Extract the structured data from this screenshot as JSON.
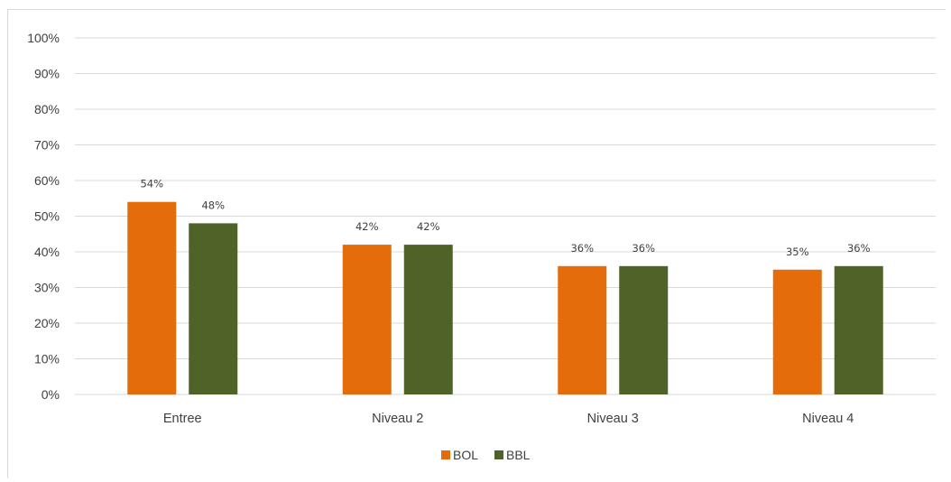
{
  "chart_data": {
    "type": "bar",
    "title": "",
    "xlabel": "",
    "ylabel": "",
    "categories": [
      "Entree",
      "Niveau 2",
      "Niveau 3",
      "Niveau 4"
    ],
    "series": [
      {
        "name": "BOL",
        "color": "#e46c0a",
        "values": [
          54,
          42,
          36,
          35
        ],
        "labels": [
          "54%",
          "42%",
          "36%",
          "35%"
        ]
      },
      {
        "name": "BBL",
        "color": "#4f6228",
        "values": [
          48,
          42,
          36,
          36
        ],
        "labels": [
          "48%",
          "42%",
          "36%",
          "36%"
        ]
      }
    ],
    "ylim": [
      0,
      100
    ],
    "yticks": [
      0,
      10,
      20,
      30,
      40,
      50,
      60,
      70,
      80,
      90,
      100
    ],
    "ytick_labels": [
      "0%",
      "10%",
      "20%",
      "30%",
      "40%",
      "50%",
      "60%",
      "70%",
      "80%",
      "90%",
      "100%"
    ],
    "grid": true,
    "legend_position": "bottom-center",
    "gridline_color": "#d9d9d9"
  }
}
